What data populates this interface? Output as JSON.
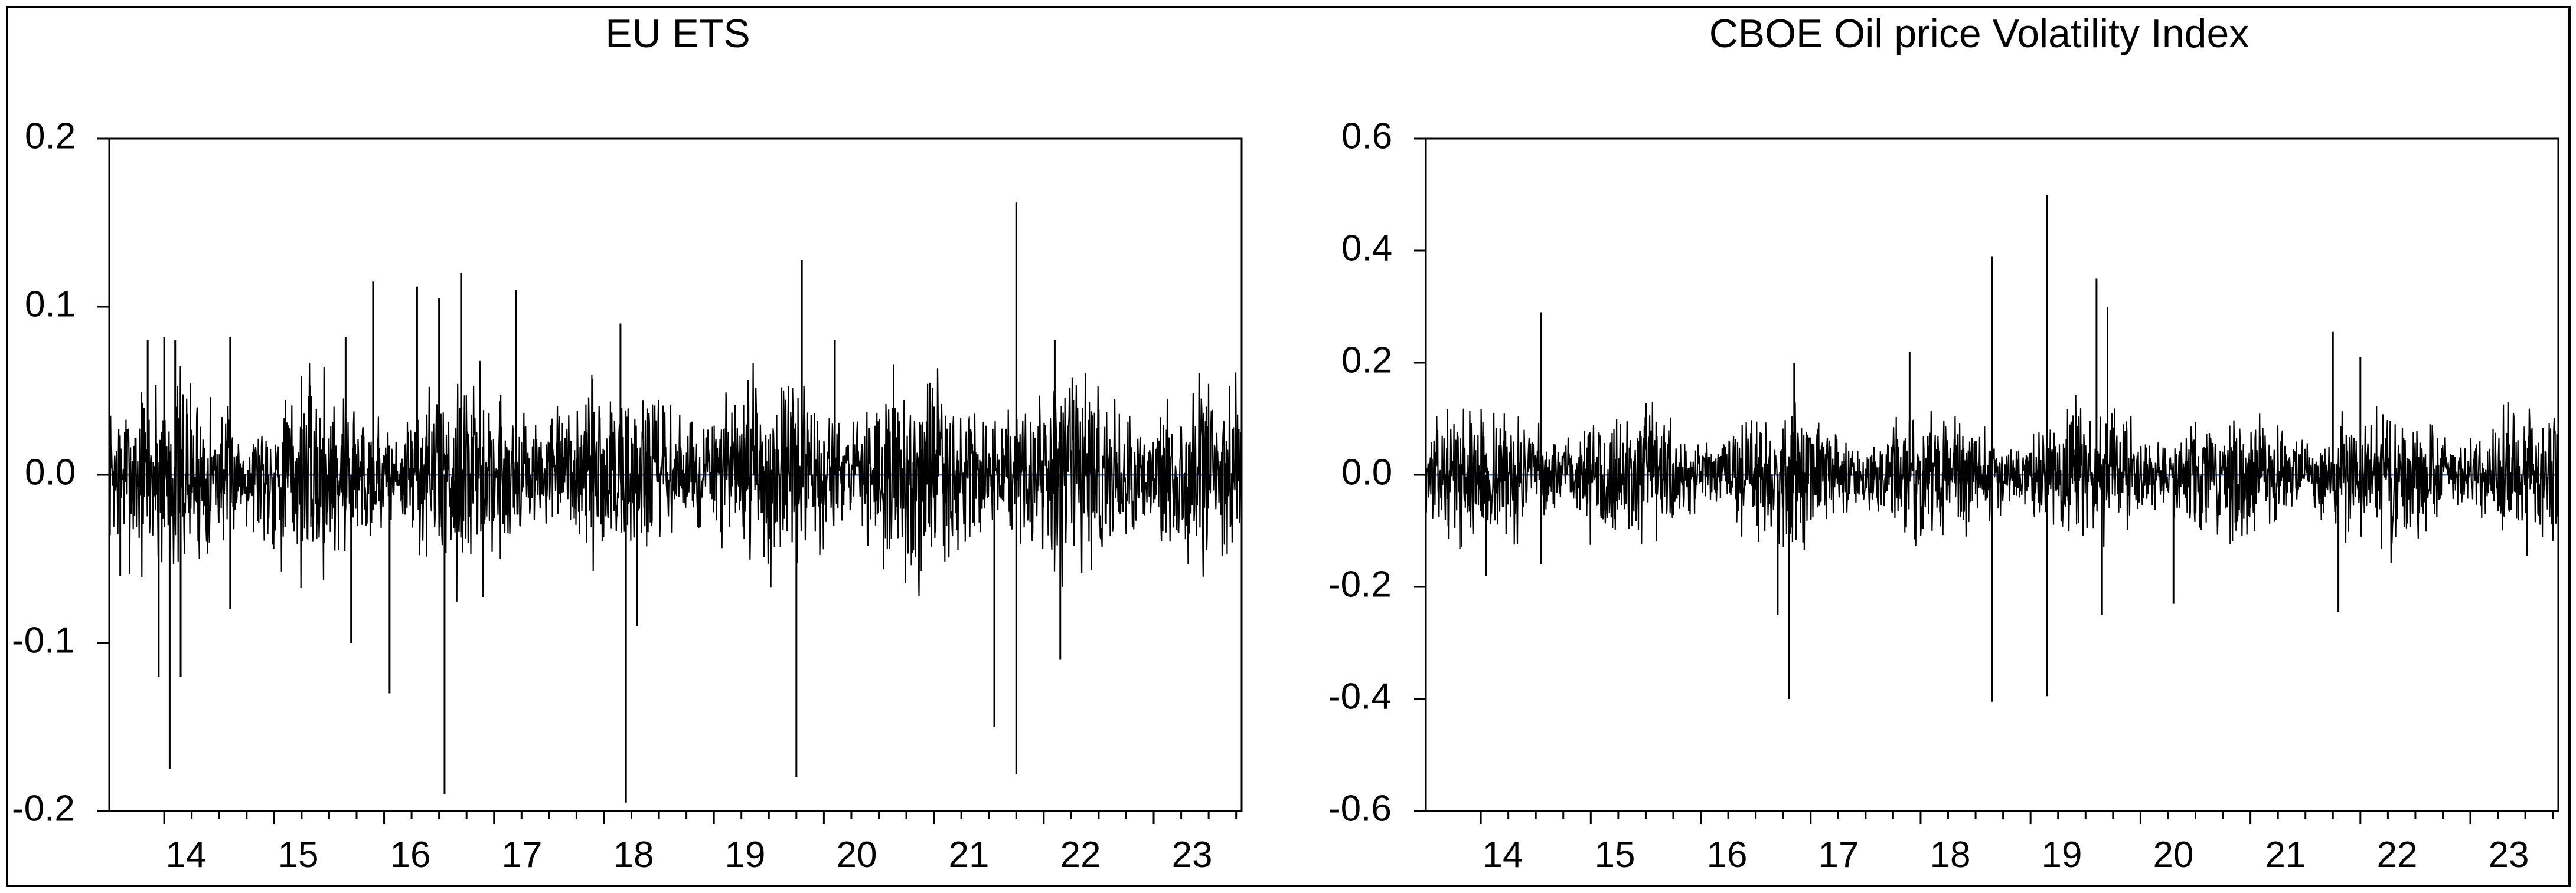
{
  "chart_data": [
    {
      "type": "line",
      "title": "EU ETS",
      "xlabel": "",
      "ylabel": "",
      "x_tick_labels": [
        "14",
        "15",
        "16",
        "17",
        "18",
        "19",
        "20",
        "21",
        "22",
        "23"
      ],
      "y_tick_labels": [
        "0.2",
        "0.1",
        "0.0",
        "-0.1",
        "-0.2"
      ],
      "ylim": [
        -0.2,
        0.2
      ],
      "xlim": [
        2013.5,
        2023.8
      ],
      "grid": false,
      "series": [
        {
          "color": "#000000",
          "zero_line_color": "#4472c4",
          "approximate_noise_level": 0.02,
          "spikes": [
            {
              "x": 2013.6,
              "y": -0.06
            },
            {
              "x": 2013.85,
              "y": 0.08
            },
            {
              "x": 2013.95,
              "y": -0.12
            },
            {
              "x": 2014.0,
              "y": 0.082
            },
            {
              "x": 2014.05,
              "y": -0.175
            },
            {
              "x": 2014.1,
              "y": 0.08
            },
            {
              "x": 2014.15,
              "y": -0.12
            },
            {
              "x": 2014.6,
              "y": 0.082
            },
            {
              "x": 2014.6,
              "y": -0.08
            },
            {
              "x": 2015.65,
              "y": 0.082
            },
            {
              "x": 2015.7,
              "y": -0.1
            },
            {
              "x": 2015.9,
              "y": 0.115
            },
            {
              "x": 2016.05,
              "y": -0.13
            },
            {
              "x": 2016.3,
              "y": 0.112
            },
            {
              "x": 2016.5,
              "y": 0.105
            },
            {
              "x": 2016.55,
              "y": -0.19
            },
            {
              "x": 2016.7,
              "y": 0.12
            },
            {
              "x": 2017.2,
              "y": 0.11
            },
            {
              "x": 2018.15,
              "y": 0.09
            },
            {
              "x": 2018.2,
              "y": -0.195
            },
            {
              "x": 2018.3,
              "y": -0.09
            },
            {
              "x": 2019.8,
              "y": 0.128
            },
            {
              "x": 2019.75,
              "y": -0.18
            },
            {
              "x": 2020.1,
              "y": 0.08
            },
            {
              "x": 2021.55,
              "y": -0.15
            },
            {
              "x": 2021.75,
              "y": 0.162
            },
            {
              "x": 2021.75,
              "y": -0.178
            },
            {
              "x": 2022.1,
              "y": 0.08
            },
            {
              "x": 2022.15,
              "y": -0.11
            }
          ]
        }
      ]
    },
    {
      "type": "line",
      "title": "CBOE Oil price Volatility Index",
      "xlabel": "",
      "ylabel": "",
      "x_tick_labels": [
        "14",
        "15",
        "16",
        "17",
        "18",
        "19",
        "20",
        "21",
        "22",
        "23"
      ],
      "y_tick_labels": [
        "0.6",
        "0.4",
        "0.2",
        "0.0",
        "-0.2",
        "-0.4",
        "-0.6"
      ],
      "ylim": [
        -0.6,
        0.6
      ],
      "xlim": [
        2013.5,
        2023.8
      ],
      "grid": false,
      "series": [
        {
          "color": "#000000",
          "zero_line_color": "#4472c4",
          "approximate_noise_level": 0.04,
          "spikes": [
            {
              "x": 2014.05,
              "y": -0.18
            },
            {
              "x": 2014.55,
              "y": 0.29
            },
            {
              "x": 2014.55,
              "y": -0.16
            },
            {
              "x": 2016.7,
              "y": -0.25
            },
            {
              "x": 2016.8,
              "y": -0.4
            },
            {
              "x": 2016.85,
              "y": 0.2
            },
            {
              "x": 2017.9,
              "y": 0.22
            },
            {
              "x": 2018.65,
              "y": 0.39
            },
            {
              "x": 2018.65,
              "y": -0.405
            },
            {
              "x": 2019.15,
              "y": 0.5
            },
            {
              "x": 2019.15,
              "y": -0.395
            },
            {
              "x": 2019.6,
              "y": 0.35
            },
            {
              "x": 2019.65,
              "y": -0.25
            },
            {
              "x": 2019.7,
              "y": 0.3
            },
            {
              "x": 2020.3,
              "y": -0.23
            },
            {
              "x": 2021.75,
              "y": 0.255
            },
            {
              "x": 2021.8,
              "y": -0.245
            },
            {
              "x": 2022.0,
              "y": 0.21
            }
          ]
        }
      ]
    }
  ]
}
